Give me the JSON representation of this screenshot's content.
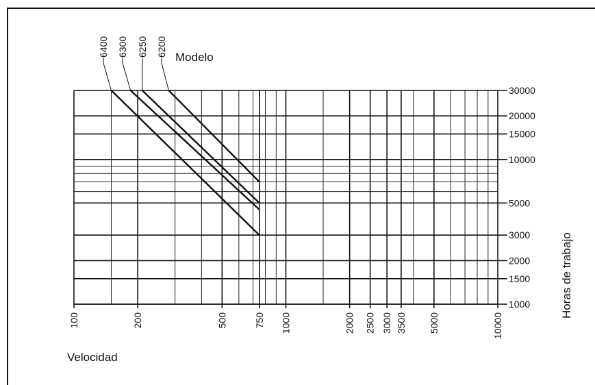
{
  "chart_data": {
    "type": "line",
    "title": "",
    "xlabel": "Velocidad",
    "ylabel": "Horas de trabajo",
    "legend_title": "Modelo",
    "x_scale": "log",
    "y_scale": "log",
    "xlim": [
      100,
      10000
    ],
    "ylim": [
      1000,
      30000
    ],
    "x_ticks": [
      100,
      200,
      500,
      750,
      1000,
      2000,
      2500,
      3000,
      3500,
      5000,
      10000
    ],
    "x_tick_labels": [
      "100",
      "200",
      "500",
      "750",
      "1000",
      "2000",
      "2500",
      "3000",
      "3500",
      "5000",
      "10000"
    ],
    "y_ticks": [
      1000,
      1500,
      2000,
      3000,
      5000,
      10000,
      15000,
      20000,
      30000
    ],
    "y_tick_labels": [
      "1000",
      "1500",
      "2000",
      "3000",
      "5000",
      "10000",
      "15000",
      "20000",
      "30000"
    ],
    "grid": true,
    "series": [
      {
        "name": "6400",
        "x": [
          150,
          750
        ],
        "y": [
          30000,
          3000
        ]
      },
      {
        "name": "6300",
        "x": [
          185,
          750
        ],
        "y": [
          30000,
          4500
        ]
      },
      {
        "name": "6250",
        "x": [
          210,
          750
        ],
        "y": [
          30000,
          5000
        ]
      },
      {
        "name": "6200",
        "x": [
          280,
          750
        ],
        "y": [
          30000,
          7000
        ]
      }
    ]
  }
}
